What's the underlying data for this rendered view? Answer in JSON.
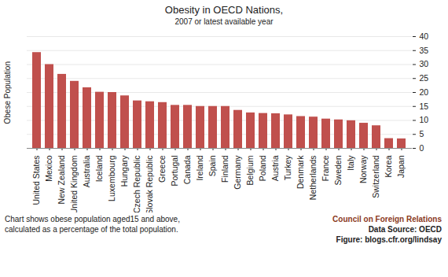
{
  "chart_data": {
    "type": "bar",
    "title": "Obesity in OECD Nations,",
    "subtitle": "2007 or latest available year",
    "ylabel": "Obese Population",
    "categories": [
      "United States",
      "Mexico",
      "New Zealand",
      "United Kingdom",
      "Australia",
      "Iceland",
      "Luxembourg",
      "Hungary",
      "Czech Republic",
      "Slovak Republic",
      "Greece",
      "Portugal",
      "Canada",
      "Ireland",
      "Spain",
      "Finland",
      "Germany",
      "Belgium",
      "Poland",
      "Austria",
      "Turkey",
      "Denmark",
      "Netherlands",
      "France",
      "Sweden",
      "Italy",
      "Norway",
      "Switzerland",
      "Korea",
      "Japan"
    ],
    "values": [
      34.3,
      30.0,
      26.5,
      24.0,
      21.7,
      20.1,
      20.0,
      18.8,
      17.0,
      16.7,
      16.4,
      15.4,
      15.4,
      15.0,
      15.0,
      15.0,
      13.6,
      12.7,
      12.5,
      12.4,
      12.0,
      11.4,
      11.2,
      10.5,
      10.2,
      9.9,
      9.0,
      8.1,
      3.5,
      3.4
    ],
    "color": "#c0504d",
    "ylim": [
      0,
      40
    ],
    "yticks": [
      0,
      5,
      10,
      15,
      20,
      25,
      30,
      35,
      40
    ],
    "grid": true,
    "annotations": [
      "Chart shows obese population aged15 and above, calculated as a percentage of the total population.",
      "Council on Foreign Relations",
      "Data Source: OECD",
      "Figure: blogs.cfr.org/lindsay"
    ]
  }
}
